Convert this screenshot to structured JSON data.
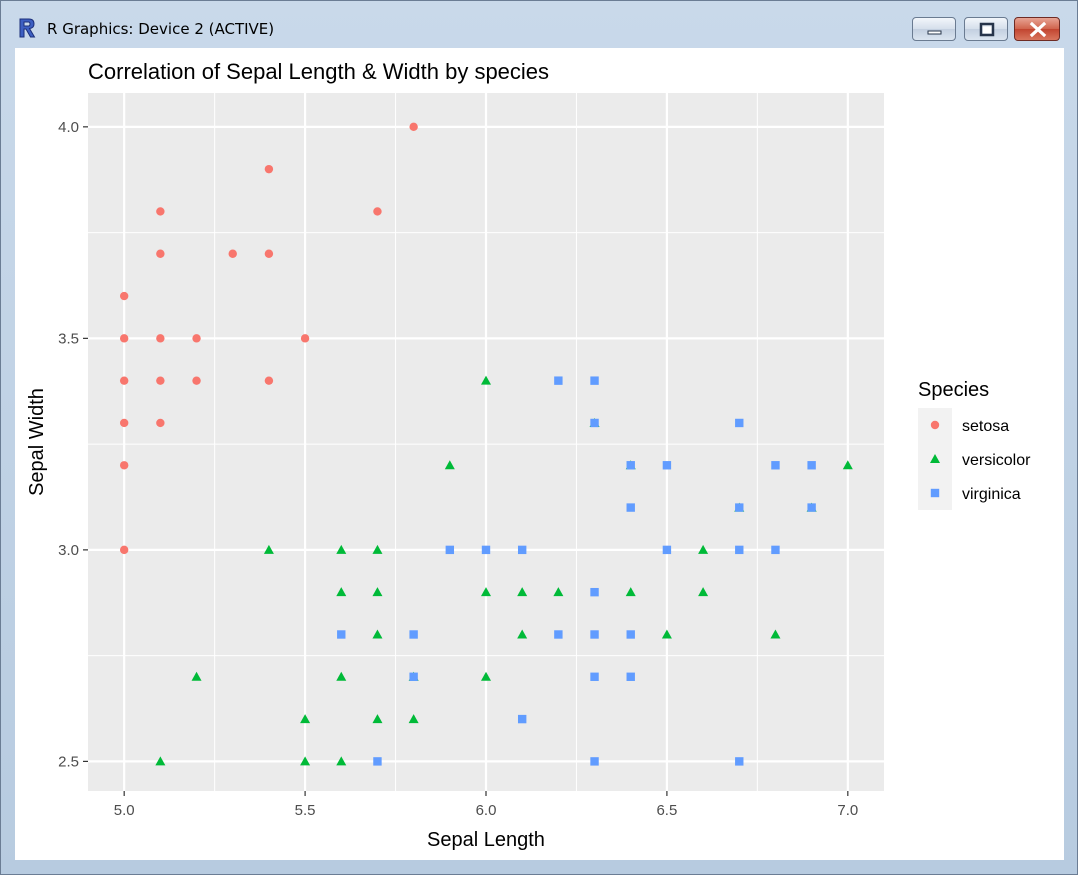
{
  "window": {
    "title": "R Graphics: Device 2 (ACTIVE)",
    "app_icon": "r-logo-icon",
    "controls": [
      "minimize-icon",
      "maximize-icon",
      "close-icon"
    ]
  },
  "chart_data": {
    "type": "scatter",
    "title": "Correlation of Sepal Length & Width by species",
    "xlabel": "Sepal Length",
    "ylabel": "Sepal Width",
    "xlim": [
      4.9,
      7.1
    ],
    "ylim": [
      2.43,
      4.08
    ],
    "x_ticks": [
      "5.0",
      "5.5",
      "6.0",
      "6.5",
      "7.0"
    ],
    "y_ticks": [
      "2.5",
      "3.0",
      "3.5",
      "4.0"
    ],
    "grid": true,
    "background": "#ebebeb",
    "legend": {
      "title": "Species",
      "placement": "right"
    },
    "series": [
      {
        "name": "setosa",
        "marker": "circle",
        "color": "#f8766d",
        "points": [
          [
            5.0,
            3.6
          ],
          [
            5.0,
            3.5
          ],
          [
            5.0,
            3.4
          ],
          [
            5.0,
            3.3
          ],
          [
            5.0,
            3.2
          ],
          [
            5.0,
            3.0
          ],
          [
            5.1,
            3.8
          ],
          [
            5.1,
            3.7
          ],
          [
            5.1,
            3.5
          ],
          [
            5.1,
            3.4
          ],
          [
            5.1,
            3.3
          ],
          [
            5.2,
            3.5
          ],
          [
            5.2,
            3.4
          ],
          [
            5.3,
            3.7
          ],
          [
            5.4,
            3.9
          ],
          [
            5.4,
            3.7
          ],
          [
            5.4,
            3.4
          ],
          [
            5.5,
            3.5
          ],
          [
            5.7,
            3.8
          ],
          [
            5.8,
            4.0
          ]
        ]
      },
      {
        "name": "versicolor",
        "marker": "triangle",
        "color": "#00ba38",
        "points": [
          [
            5.1,
            2.5
          ],
          [
            5.2,
            2.7
          ],
          [
            5.4,
            3.0
          ],
          [
            5.5,
            2.6
          ],
          [
            5.5,
            2.5
          ],
          [
            5.6,
            3.0
          ],
          [
            5.6,
            2.9
          ],
          [
            5.6,
            2.7
          ],
          [
            5.6,
            2.5
          ],
          [
            5.7,
            3.0
          ],
          [
            5.7,
            2.9
          ],
          [
            5.7,
            2.8
          ],
          [
            5.7,
            2.6
          ],
          [
            5.8,
            2.7
          ],
          [
            5.8,
            2.6
          ],
          [
            5.9,
            3.2
          ],
          [
            6.0,
            3.4
          ],
          [
            6.0,
            2.9
          ],
          [
            6.0,
            2.7
          ],
          [
            6.1,
            2.9
          ],
          [
            6.1,
            2.8
          ],
          [
            6.2,
            2.9
          ],
          [
            6.3,
            3.3
          ],
          [
            6.4,
            3.2
          ],
          [
            6.4,
            2.9
          ],
          [
            6.5,
            2.8
          ],
          [
            6.6,
            3.0
          ],
          [
            6.6,
            2.9
          ],
          [
            6.7,
            3.1
          ],
          [
            6.8,
            2.8
          ],
          [
            6.9,
            3.1
          ],
          [
            7.0,
            3.2
          ]
        ]
      },
      {
        "name": "virginica",
        "marker": "square",
        "color": "#619cff",
        "points": [
          [
            5.6,
            2.8
          ],
          [
            5.7,
            2.5
          ],
          [
            5.8,
            2.8
          ],
          [
            5.8,
            2.7
          ],
          [
            5.9,
            3.0
          ],
          [
            6.0,
            3.0
          ],
          [
            6.1,
            3.0
          ],
          [
            6.1,
            2.6
          ],
          [
            6.2,
            3.4
          ],
          [
            6.2,
            2.8
          ],
          [
            6.3,
            3.4
          ],
          [
            6.3,
            3.3
          ],
          [
            6.3,
            2.9
          ],
          [
            6.3,
            2.8
          ],
          [
            6.3,
            2.7
          ],
          [
            6.3,
            2.5
          ],
          [
            6.4,
            3.2
          ],
          [
            6.4,
            3.1
          ],
          [
            6.4,
            2.8
          ],
          [
            6.4,
            2.7
          ],
          [
            6.5,
            3.2
          ],
          [
            6.5,
            3.0
          ],
          [
            6.7,
            3.3
          ],
          [
            6.7,
            3.1
          ],
          [
            6.7,
            3.0
          ],
          [
            6.7,
            2.5
          ],
          [
            6.8,
            3.2
          ],
          [
            6.8,
            3.0
          ],
          [
            6.9,
            3.2
          ],
          [
            6.9,
            3.1
          ]
        ]
      }
    ]
  }
}
